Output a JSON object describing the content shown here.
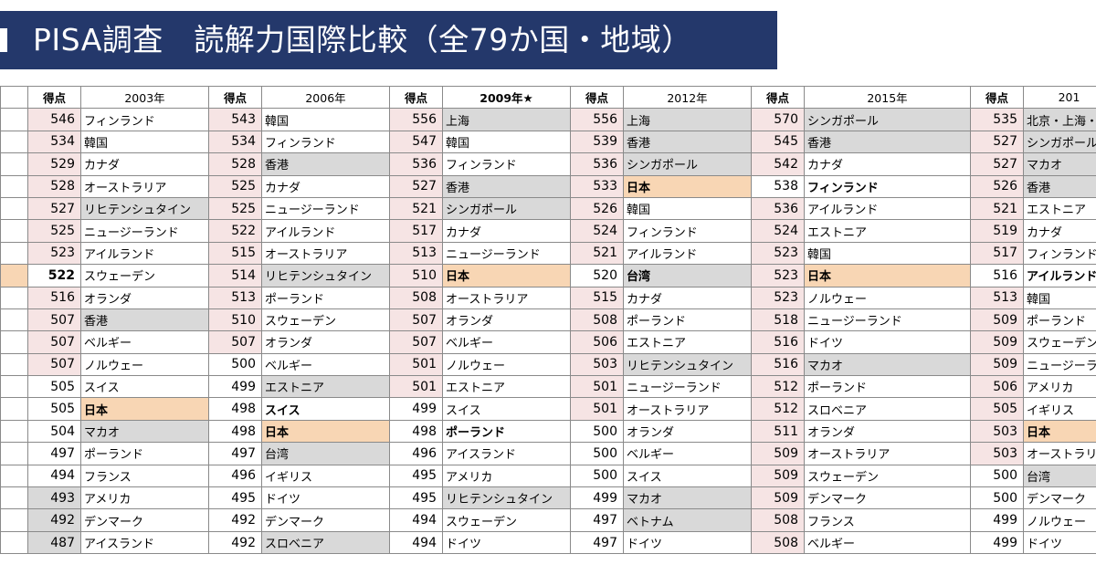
{
  "title": "PISA調査　読解力国際比較（全79か国・地域）",
  "columns": [
    {
      "score_header": "得点",
      "year": "2003年",
      "year_bold": false
    },
    {
      "score_header": "得点",
      "year": "2006年",
      "year_bold": false
    },
    {
      "score_header": "得点",
      "year": "2009年★",
      "year_bold": true
    },
    {
      "score_header": "得点",
      "year": "2012年",
      "year_bold": false
    },
    {
      "score_header": "得点",
      "year": "2015年",
      "year_bold": false
    },
    {
      "score_header": "得点",
      "year": "201",
      "year_bold": false
    }
  ],
  "partial_scores": [
    "546",
    "534",
    "529",
    "528",
    "527",
    "525",
    "523",
    "522",
    "516",
    "507",
    "507",
    "507",
    "505",
    "505",
    "504",
    "497",
    "494",
    "493",
    "492",
    "487"
  ],
  "rows": [
    [
      [
        "フィンランド",
        "",
        ""
      ],
      [
        "543",
        "pink",
        ""
      ],
      [
        "韓国",
        "",
        ""
      ],
      [
        "556",
        "pink",
        ""
      ],
      [
        "上海",
        "gray",
        ""
      ],
      [
        "556",
        "pink",
        ""
      ],
      [
        "上海",
        "gray",
        ""
      ],
      [
        "570",
        "pink",
        ""
      ],
      [
        "シンガポール",
        "gray",
        ""
      ],
      [
        "535",
        "pink",
        ""
      ],
      [
        "北京・上海・江",
        "gray",
        ""
      ]
    ],
    [
      [
        "韓国",
        "",
        ""
      ],
      [
        "534",
        "pink",
        ""
      ],
      [
        "フィンランド",
        "",
        ""
      ],
      [
        "547",
        "pink",
        ""
      ],
      [
        "韓国",
        "",
        ""
      ],
      [
        "539",
        "pink",
        ""
      ],
      [
        "香港",
        "gray",
        ""
      ],
      [
        "545",
        "pink",
        ""
      ],
      [
        "香港",
        "gray",
        ""
      ],
      [
        "527",
        "pink",
        ""
      ],
      [
        "シンガポール",
        "gray",
        ""
      ]
    ],
    [
      [
        "カナダ",
        "",
        ""
      ],
      [
        "528",
        "pink",
        ""
      ],
      [
        "香港",
        "gray",
        ""
      ],
      [
        "536",
        "pink",
        ""
      ],
      [
        "フィンランド",
        "",
        ""
      ],
      [
        "536",
        "pink",
        ""
      ],
      [
        "シンガポール",
        "gray",
        ""
      ],
      [
        "542",
        "pink",
        ""
      ],
      [
        "カナダ",
        "",
        ""
      ],
      [
        "527",
        "pink",
        ""
      ],
      [
        "マカオ",
        "gray",
        ""
      ]
    ],
    [
      [
        "オーストラリア",
        "",
        ""
      ],
      [
        "525",
        "pink",
        ""
      ],
      [
        "カナダ",
        "",
        ""
      ],
      [
        "527",
        "pink",
        ""
      ],
      [
        "香港",
        "gray",
        ""
      ],
      [
        "533",
        "pink",
        ""
      ],
      [
        "日本",
        "jp",
        ""
      ],
      [
        "538",
        "",
        ""
      ],
      [
        "フィンランド",
        "",
        ""
      ],
      [
        "526",
        "pink",
        ""
      ],
      [
        "香港",
        "gray",
        ""
      ]
    ],
    [
      [
        "リヒテンシュタイン",
        "gray",
        ""
      ],
      [
        "525",
        "pink",
        ""
      ],
      [
        "ニュージーランド",
        "",
        ""
      ],
      [
        "521",
        "pink",
        ""
      ],
      [
        "シンガポール",
        "gray",
        ""
      ],
      [
        "526",
        "pink",
        ""
      ],
      [
        "韓国",
        "",
        ""
      ],
      [
        "536",
        "pink",
        ""
      ],
      [
        "アイルランド",
        "",
        ""
      ],
      [
        "521",
        "pink",
        ""
      ],
      [
        "エストニア",
        "",
        ""
      ]
    ],
    [
      [
        "ニュージーランド",
        "",
        ""
      ],
      [
        "522",
        "pink",
        ""
      ],
      [
        "アイルランド",
        "",
        ""
      ],
      [
        "517",
        "pink",
        ""
      ],
      [
        "カナダ",
        "",
        ""
      ],
      [
        "524",
        "pink",
        ""
      ],
      [
        "フィンランド",
        "",
        ""
      ],
      [
        "524",
        "pink",
        ""
      ],
      [
        "エストニア",
        "",
        ""
      ],
      [
        "519",
        "pink",
        ""
      ],
      [
        "カナダ",
        "",
        ""
      ]
    ],
    [
      [
        "アイルランド",
        "",
        ""
      ],
      [
        "515",
        "pink",
        ""
      ],
      [
        "オーストラリア",
        "",
        ""
      ],
      [
        "513",
        "pink",
        ""
      ],
      [
        "ニュージーランド",
        "",
        ""
      ],
      [
        "521",
        "pink",
        ""
      ],
      [
        "アイルランド",
        "",
        ""
      ],
      [
        "523",
        "pink",
        ""
      ],
      [
        "韓国",
        "",
        ""
      ],
      [
        "517",
        "pink",
        ""
      ],
      [
        "フィンランド",
        "",
        ""
      ]
    ],
    [
      [
        "スウェーデン",
        "",
        ""
      ],
      [
        "514",
        "pink",
        ""
      ],
      [
        "リヒテンシュタイン",
        "gray",
        ""
      ],
      [
        "510",
        "pink",
        ""
      ],
      [
        "日本",
        "jp",
        ""
      ],
      [
        "520",
        "",
        ""
      ],
      [
        "台湾",
        "gray",
        ""
      ],
      [
        "523",
        "pink",
        ""
      ],
      [
        "日本",
        "jp",
        ""
      ],
      [
        "516",
        "",
        ""
      ],
      [
        "アイルランド",
        "",
        ""
      ]
    ],
    [
      [
        "オランダ",
        "",
        ""
      ],
      [
        "513",
        "pink",
        ""
      ],
      [
        "ポーランド",
        "",
        ""
      ],
      [
        "508",
        "pink",
        ""
      ],
      [
        "オーストラリア",
        "",
        ""
      ],
      [
        "515",
        "pink",
        ""
      ],
      [
        "カナダ",
        "",
        ""
      ],
      [
        "523",
        "pink",
        ""
      ],
      [
        "ノルウェー",
        "",
        ""
      ],
      [
        "513",
        "pink",
        ""
      ],
      [
        "韓国",
        "",
        ""
      ]
    ],
    [
      [
        "香港",
        "gray",
        ""
      ],
      [
        "510",
        "pink",
        ""
      ],
      [
        "スウェーデン",
        "",
        ""
      ],
      [
        "507",
        "pink",
        ""
      ],
      [
        "オランダ",
        "",
        ""
      ],
      [
        "508",
        "pink",
        ""
      ],
      [
        "ポーランド",
        "",
        ""
      ],
      [
        "518",
        "pink",
        ""
      ],
      [
        "ニュージーランド",
        "",
        ""
      ],
      [
        "509",
        "pink",
        ""
      ],
      [
        "ポーランド",
        "",
        ""
      ]
    ],
    [
      [
        "ベルギー",
        "",
        ""
      ],
      [
        "507",
        "pink",
        ""
      ],
      [
        "オランダ",
        "",
        ""
      ],
      [
        "507",
        "pink",
        ""
      ],
      [
        "ベルギー",
        "",
        ""
      ],
      [
        "506",
        "pink",
        ""
      ],
      [
        "エストニア",
        "",
        ""
      ],
      [
        "516",
        "pink",
        ""
      ],
      [
        "ドイツ",
        "",
        ""
      ],
      [
        "509",
        "pink",
        ""
      ],
      [
        "スウェーデン",
        "",
        ""
      ]
    ],
    [
      [
        "ノルウェー",
        "",
        ""
      ],
      [
        "500",
        "",
        ""
      ],
      [
        "ベルギー",
        "",
        ""
      ],
      [
        "501",
        "pink",
        ""
      ],
      [
        "ノルウェー",
        "",
        ""
      ],
      [
        "503",
        "pink",
        ""
      ],
      [
        "リヒテンシュタイン",
        "gray",
        ""
      ],
      [
        "516",
        "pink",
        ""
      ],
      [
        "マカオ",
        "gray",
        ""
      ],
      [
        "509",
        "pink",
        ""
      ],
      [
        "ニュージーラ",
        "",
        ""
      ]
    ],
    [
      [
        "スイス",
        "",
        ""
      ],
      [
        "499",
        "",
        ""
      ],
      [
        "エストニア",
        "gray",
        ""
      ],
      [
        "501",
        "pink",
        ""
      ],
      [
        "エストニア",
        "",
        ""
      ],
      [
        "501",
        "pink",
        ""
      ],
      [
        "ニュージーランド",
        "",
        ""
      ],
      [
        "512",
        "pink",
        ""
      ],
      [
        "ポーランド",
        "",
        ""
      ],
      [
        "506",
        "pink",
        ""
      ],
      [
        "アメリカ",
        "",
        ""
      ]
    ],
    [
      [
        "日本",
        "jp",
        ""
      ],
      [
        "498",
        "",
        ""
      ],
      [
        "スイス",
        "",
        ""
      ],
      [
        "499",
        "",
        ""
      ],
      [
        "スイス",
        "",
        ""
      ],
      [
        "501",
        "pink",
        ""
      ],
      [
        "オーストラリア",
        "",
        ""
      ],
      [
        "512",
        "pink",
        ""
      ],
      [
        "スロベニア",
        "",
        ""
      ],
      [
        "505",
        "pink",
        ""
      ],
      [
        "イギリス",
        "",
        ""
      ]
    ],
    [
      [
        "マカオ",
        "gray",
        ""
      ],
      [
        "498",
        "",
        ""
      ],
      [
        "日本",
        "jp",
        ""
      ],
      [
        "498",
        "",
        ""
      ],
      [
        "ポーランド",
        "",
        ""
      ],
      [
        "500",
        "",
        ""
      ],
      [
        "オランダ",
        "",
        ""
      ],
      [
        "511",
        "pink",
        ""
      ],
      [
        "オランダ",
        "",
        ""
      ],
      [
        "503",
        "pink",
        ""
      ],
      [
        "日本",
        "jp",
        ""
      ]
    ],
    [
      [
        "ポーランド",
        "",
        ""
      ],
      [
        "497",
        "",
        ""
      ],
      [
        "台湾",
        "gray",
        ""
      ],
      [
        "496",
        "",
        ""
      ],
      [
        "アイスランド",
        "",
        ""
      ],
      [
        "500",
        "",
        ""
      ],
      [
        "ベルギー",
        "",
        ""
      ],
      [
        "509",
        "pink",
        ""
      ],
      [
        "オーストラリア",
        "",
        ""
      ],
      [
        "503",
        "pink",
        ""
      ],
      [
        "オーストラリア",
        "",
        ""
      ]
    ],
    [
      [
        "フランス",
        "",
        ""
      ],
      [
        "496",
        "",
        ""
      ],
      [
        "イギリス",
        "",
        ""
      ],
      [
        "495",
        "",
        ""
      ],
      [
        "アメリカ",
        "",
        ""
      ],
      [
        "500",
        "",
        ""
      ],
      [
        "スイス",
        "",
        ""
      ],
      [
        "509",
        "pink",
        ""
      ],
      [
        "スウェーデン",
        "",
        ""
      ],
      [
        "500",
        "",
        ""
      ],
      [
        "台湾",
        "gray",
        ""
      ]
    ],
    [
      [
        "アメリカ",
        "",
        ""
      ],
      [
        "495",
        "",
        ""
      ],
      [
        "ドイツ",
        "",
        ""
      ],
      [
        "495",
        "",
        ""
      ],
      [
        "リヒテンシュタイン",
        "gray",
        ""
      ],
      [
        "499",
        "",
        ""
      ],
      [
        "マカオ",
        "gray",
        ""
      ],
      [
        "509",
        "pink",
        ""
      ],
      [
        "デンマーク",
        "",
        ""
      ],
      [
        "500",
        "",
        ""
      ],
      [
        "デンマーク",
        "",
        ""
      ]
    ],
    [
      [
        "デンマーク",
        "",
        ""
      ],
      [
        "492",
        "",
        ""
      ],
      [
        "デンマーク",
        "",
        ""
      ],
      [
        "494",
        "",
        ""
      ],
      [
        "スウェーデン",
        "",
        ""
      ],
      [
        "497",
        "",
        ""
      ],
      [
        "ベトナム",
        "gray",
        ""
      ],
      [
        "508",
        "pink",
        ""
      ],
      [
        "フランス",
        "",
        ""
      ],
      [
        "499",
        "",
        ""
      ],
      [
        "ノルウェー",
        "",
        ""
      ]
    ],
    [
      [
        "アイスランド",
        "",
        ""
      ],
      [
        "492",
        "",
        ""
      ],
      [
        "スロベニア",
        "gray",
        ""
      ],
      [
        "494",
        "",
        ""
      ],
      [
        "ドイツ",
        "",
        ""
      ],
      [
        "497",
        "",
        ""
      ],
      [
        "ドイツ",
        "",
        ""
      ],
      [
        "508",
        "pink",
        ""
      ],
      [
        "ベルギー",
        "",
        ""
      ],
      [
        "499",
        "",
        ""
      ],
      [
        "ドイツ",
        "",
        ""
      ]
    ]
  ],
  "partial_highlight": {
    "pink_rows": [
      0,
      1,
      2,
      3,
      4,
      5,
      6,
      8,
      9,
      10,
      11
    ],
    "gray_rows": [
      17,
      18,
      19
    ],
    "jp_rows": [
      7
    ],
    "bold_rows": [
      7
    ]
  },
  "bold_scores": {
    "score_col_2003": [
      13
    ],
    "score_col_2006": [
      14
    ],
    "score_col_2009": [
      7
    ],
    "score_col_2012": [
      3
    ],
    "score_col_2015": [
      7
    ]
  }
}
